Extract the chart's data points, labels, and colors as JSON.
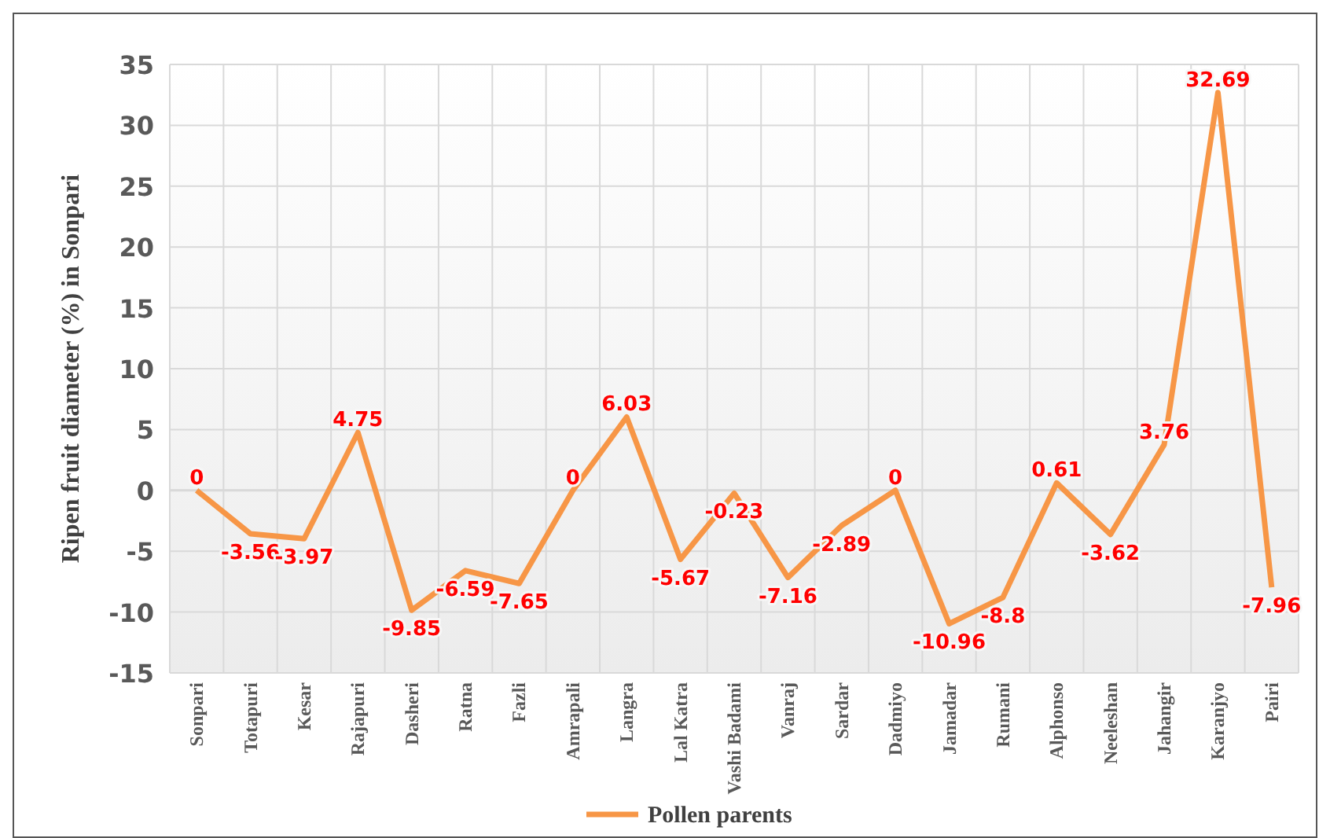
{
  "chart_data": {
    "type": "line",
    "ylabel": "Ripen fruit diameter (%) in Sonpari",
    "categories": [
      "Sonpari",
      "Totapuri",
      "Kesar",
      "Rajapuri",
      "Dasheri",
      "Ratna",
      "Fazli",
      "Amrapali",
      "Langra",
      "Lal Katra",
      "Vashi Badami",
      "Vanraj",
      "Sardar",
      "Dadmiyo",
      "Jamadar",
      "Rumani",
      "Alphonso",
      "Neeleshan",
      "Jahangir",
      "Karanjyo",
      "Pairi"
    ],
    "series": [
      {
        "name": "Pollen parents",
        "color": "#f79646",
        "values": [
          0,
          -3.56,
          -3.97,
          4.75,
          -9.85,
          -6.59,
          -7.65,
          0,
          6.03,
          -5.67,
          -0.23,
          -7.16,
          -2.89,
          0,
          -10.96,
          -8.8,
          0.61,
          -3.62,
          3.76,
          32.69,
          -7.96
        ]
      }
    ],
    "ylim": [
      -15,
      35
    ],
    "yticks": [
      -15,
      -10,
      -5,
      0,
      5,
      10,
      15,
      20,
      25,
      30,
      35
    ],
    "grid": true,
    "data_labels": true,
    "legend": "bottom",
    "marker": "none",
    "line_style": "solid"
  }
}
